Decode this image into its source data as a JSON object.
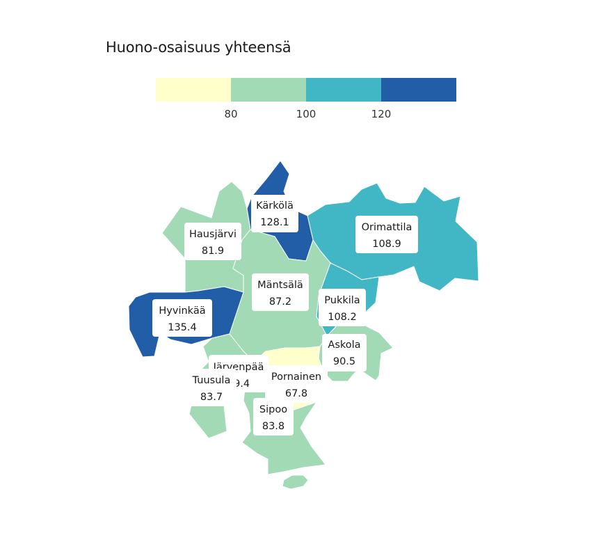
{
  "title": "Huono-osaisuus yhteensä",
  "legend": {
    "bins": [
      {
        "color": "#ffffcc"
      },
      {
        "color": "#a1dab4"
      },
      {
        "color": "#41b6c4"
      },
      {
        "color": "#225ea8"
      }
    ],
    "ticks": [
      "80",
      "100",
      "120"
    ]
  },
  "municipalities": [
    {
      "name": "Kärkölä",
      "value": "128.1",
      "color": "#225ea8"
    },
    {
      "name": "Orimattila",
      "value": "108.9",
      "color": "#41b6c4"
    },
    {
      "name": "Hausjärvi",
      "value": "81.9",
      "color": "#a1dab4"
    },
    {
      "name": "Mäntsälä",
      "value": "87.2",
      "color": "#a1dab4"
    },
    {
      "name": "Pukkila",
      "value": "108.2",
      "color": "#41b6c4"
    },
    {
      "name": "Hyvinkää",
      "value": "135.4",
      "color": "#225ea8"
    },
    {
      "name": "Askola",
      "value": "90.5",
      "color": "#a1dab4"
    },
    {
      "name": "Järvenpää",
      "value": "89.4",
      "color": "#a1dab4"
    },
    {
      "name": "Pornainen",
      "value": "67.8",
      "color": "#ffffcc"
    },
    {
      "name": "Tuusula",
      "value": "83.7",
      "color": "#a1dab4"
    },
    {
      "name": "Sipoo",
      "value": "83.8",
      "color": "#a1dab4"
    }
  ]
}
